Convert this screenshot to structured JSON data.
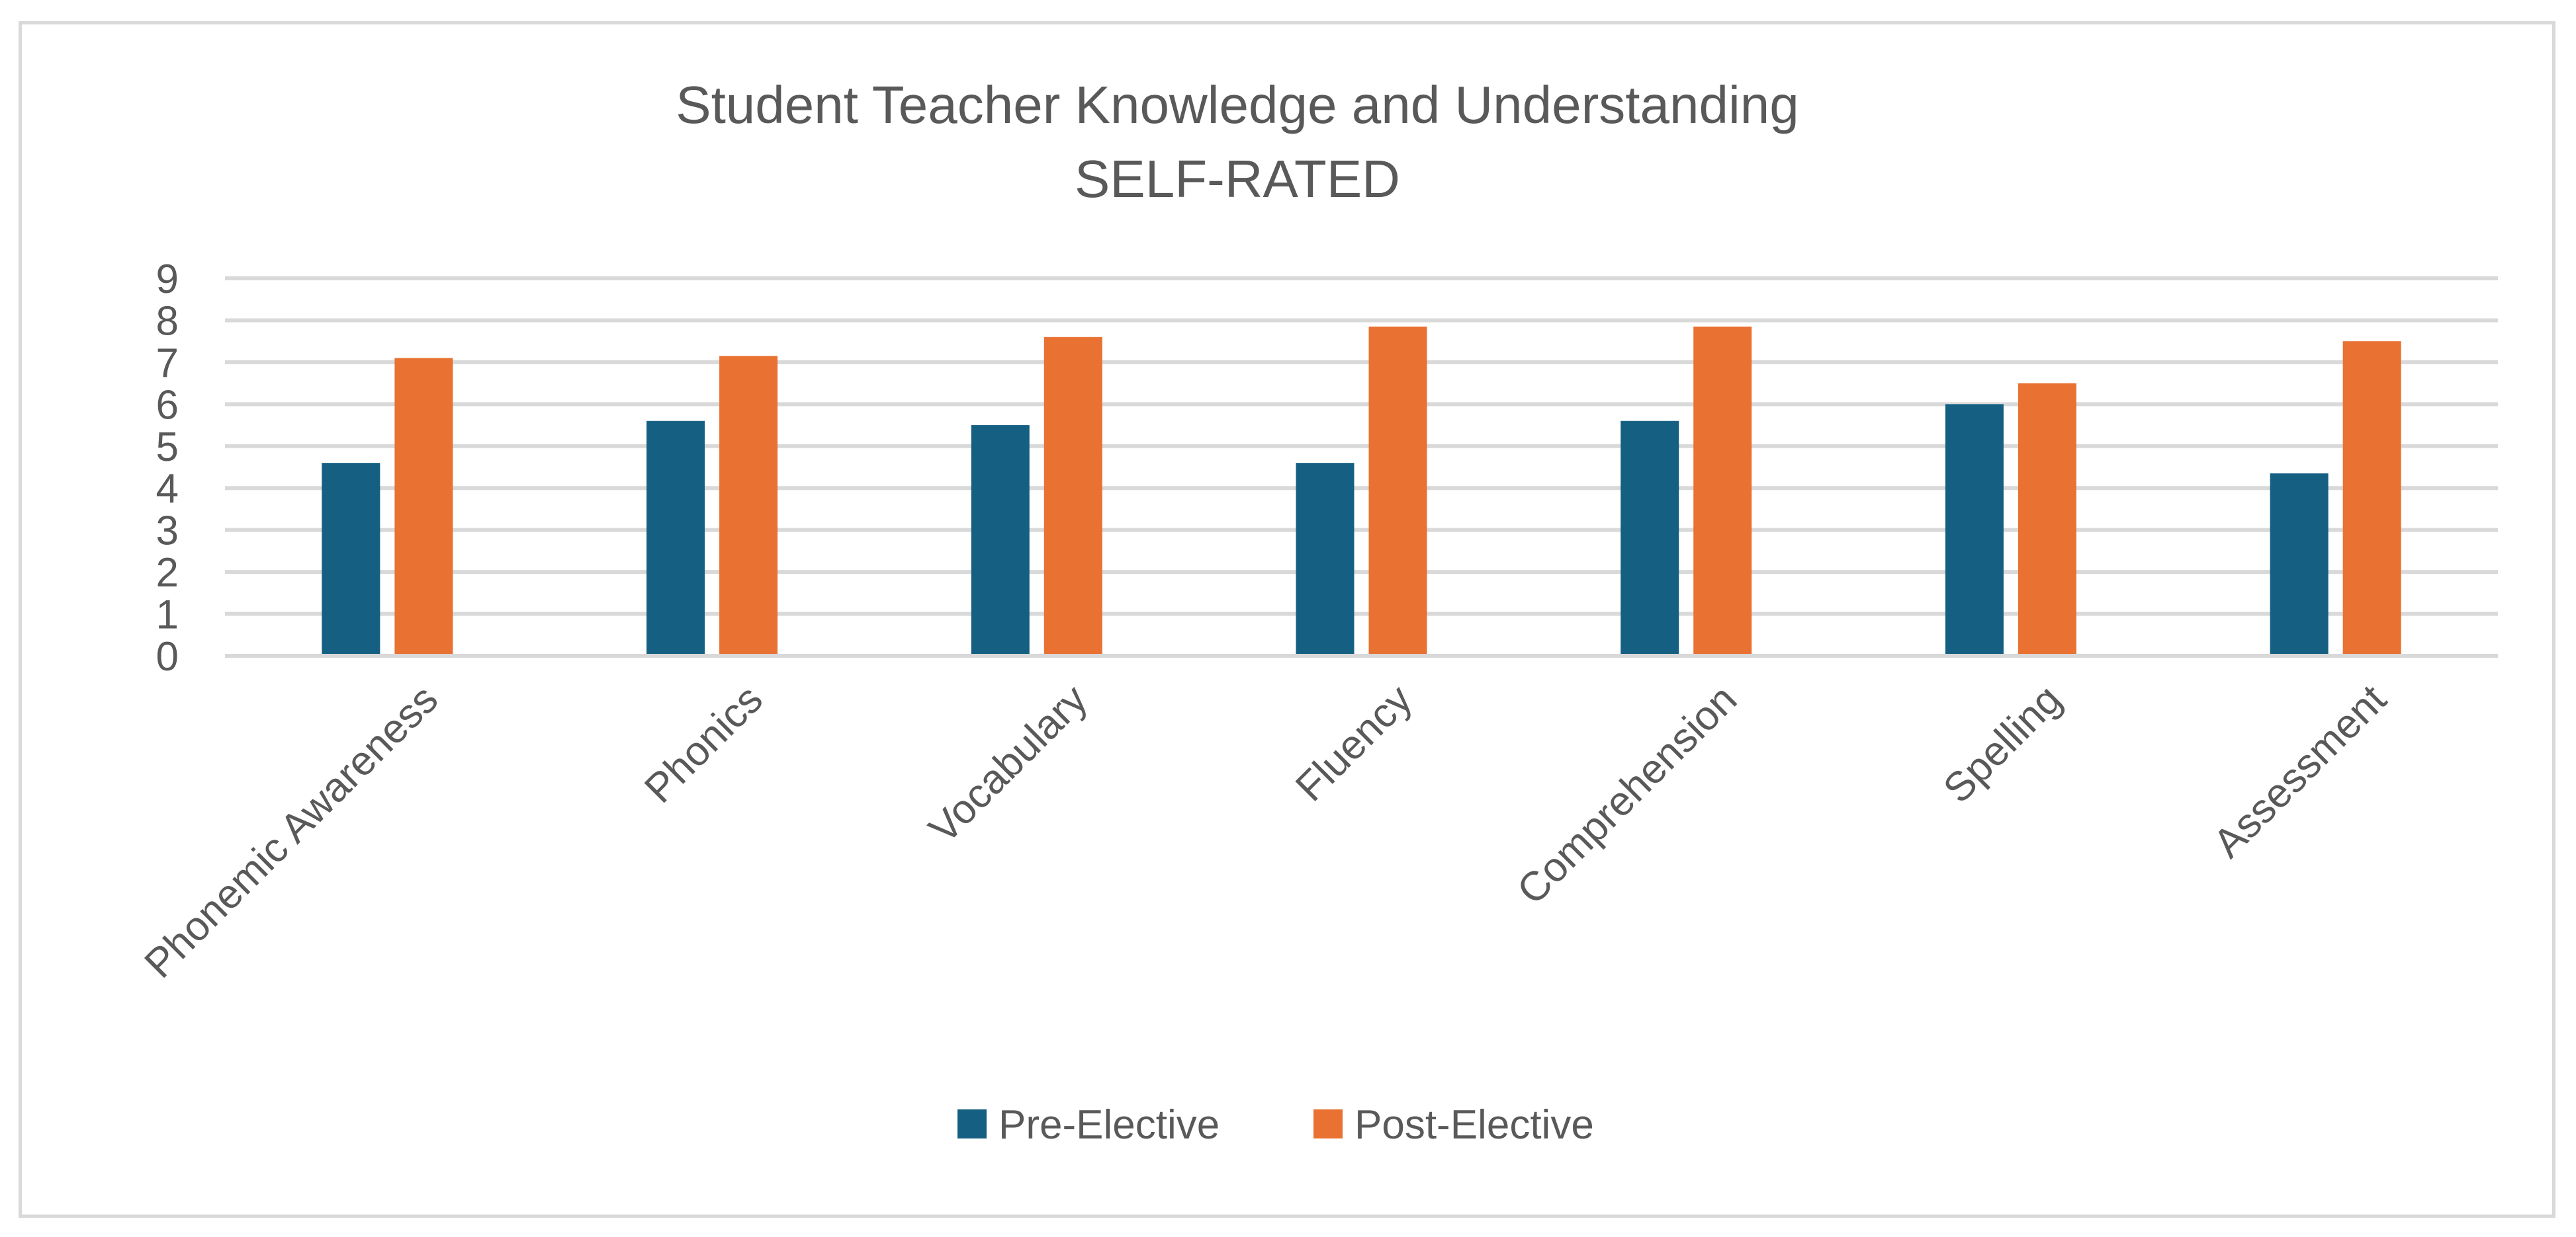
{
  "chart_data": {
    "type": "bar",
    "title": "Student Teacher Knowledge and Understanding",
    "subtitle": "SELF-RATED",
    "xlabel": "",
    "ylabel": "",
    "categories": [
      "Phonemic Awareness",
      "Phonics",
      "Vocabulary",
      "Fluency",
      "Comprehension",
      "Spelling",
      "Assessment"
    ],
    "series": [
      {
        "name": "Pre-Elective",
        "color": "#156082",
        "values": [
          4.6,
          5.6,
          5.5,
          4.6,
          5.6,
          6.0,
          4.35
        ]
      },
      {
        "name": "Post-Elective",
        "color": "#E97132",
        "values": [
          7.1,
          7.15,
          7.6,
          7.85,
          7.85,
          6.5,
          7.5
        ]
      }
    ],
    "ylim": [
      0,
      9
    ],
    "yticks": [
      "0",
      "1",
      "2",
      "3",
      "4",
      "5",
      "6",
      "7",
      "8",
      "9"
    ],
    "grid": true,
    "legend_position": "bottom"
  }
}
